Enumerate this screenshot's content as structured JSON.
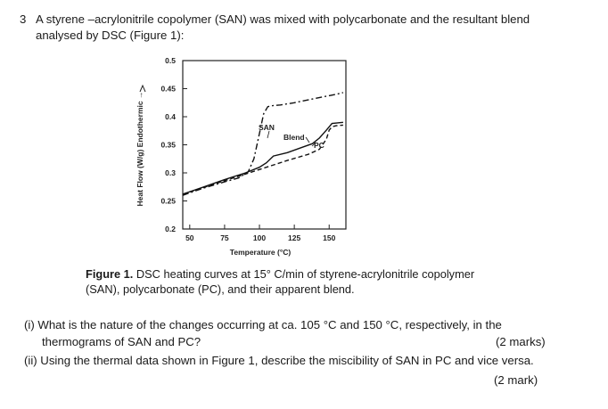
{
  "question": {
    "number": "3",
    "intro_line1": "A styrene –acrylonitrile copolymer (SAN) was mixed with polycarbonate and the resultant blend",
    "intro_line2": "analysed by DSC (Figure 1):"
  },
  "figure": {
    "caption_label": "Figure 1.",
    "caption_line1": " DSC heating curves at 15° C/min of styrene-acrylonitrile copolymer",
    "caption_line2": "(SAN), polycarbonate (PC), and their apparent blend."
  },
  "chart_data": {
    "type": "line",
    "xlabel": "Temperature (°C)",
    "ylabel": "Heat Flow (W/g) Endothermic →",
    "xlim": [
      45,
      162
    ],
    "ylim": [
      0.2,
      0.5
    ],
    "x_ticks": [
      "50",
      "75",
      "100",
      "125",
      "150"
    ],
    "y_ticks": [
      "0.5",
      "0.45",
      "0.4",
      "0.35",
      "0.3",
      "0.25",
      "0.2"
    ],
    "grid": false,
    "annotations": [
      "SAN",
      "Blend",
      "PC"
    ],
    "series": [
      {
        "name": "SAN",
        "style": "dash-dot",
        "x": [
          45,
          60,
          75,
          85,
          92,
          96,
          100,
          103,
          106,
          110,
          115,
          125,
          135,
          145,
          155,
          160
        ],
        "y": [
          0.26,
          0.273,
          0.284,
          0.291,
          0.302,
          0.325,
          0.37,
          0.405,
          0.418,
          0.42,
          0.421,
          0.425,
          0.43,
          0.435,
          0.44,
          0.443
        ]
      },
      {
        "name": "Blend",
        "style": "solid",
        "x": [
          45,
          60,
          75,
          90,
          100,
          105,
          110,
          120,
          130,
          138,
          143,
          148,
          152,
          156,
          160
        ],
        "y": [
          0.262,
          0.275,
          0.288,
          0.3,
          0.31,
          0.318,
          0.33,
          0.336,
          0.345,
          0.352,
          0.362,
          0.376,
          0.388,
          0.389,
          0.39
        ]
      },
      {
        "name": "PC",
        "style": "dashed",
        "x": [
          45,
          60,
          75,
          90,
          105,
          120,
          135,
          143,
          148,
          150,
          152,
          155,
          160
        ],
        "y": [
          0.262,
          0.274,
          0.286,
          0.298,
          0.31,
          0.322,
          0.333,
          0.342,
          0.36,
          0.376,
          0.382,
          0.384,
          0.385
        ]
      }
    ]
  },
  "parts": {
    "i_line1": "(i) What is the nature of the changes occurring at ca. 105 °C and 150 °C, respectively, in the",
    "i_line2": "thermograms of SAN and PC?",
    "i_marks": "(2 marks)",
    "ii_line1": "(ii) Using the thermal data shown in Figure 1, describe the miscibility of SAN in PC and vice versa.",
    "ii_marks": "(2 mark)"
  }
}
